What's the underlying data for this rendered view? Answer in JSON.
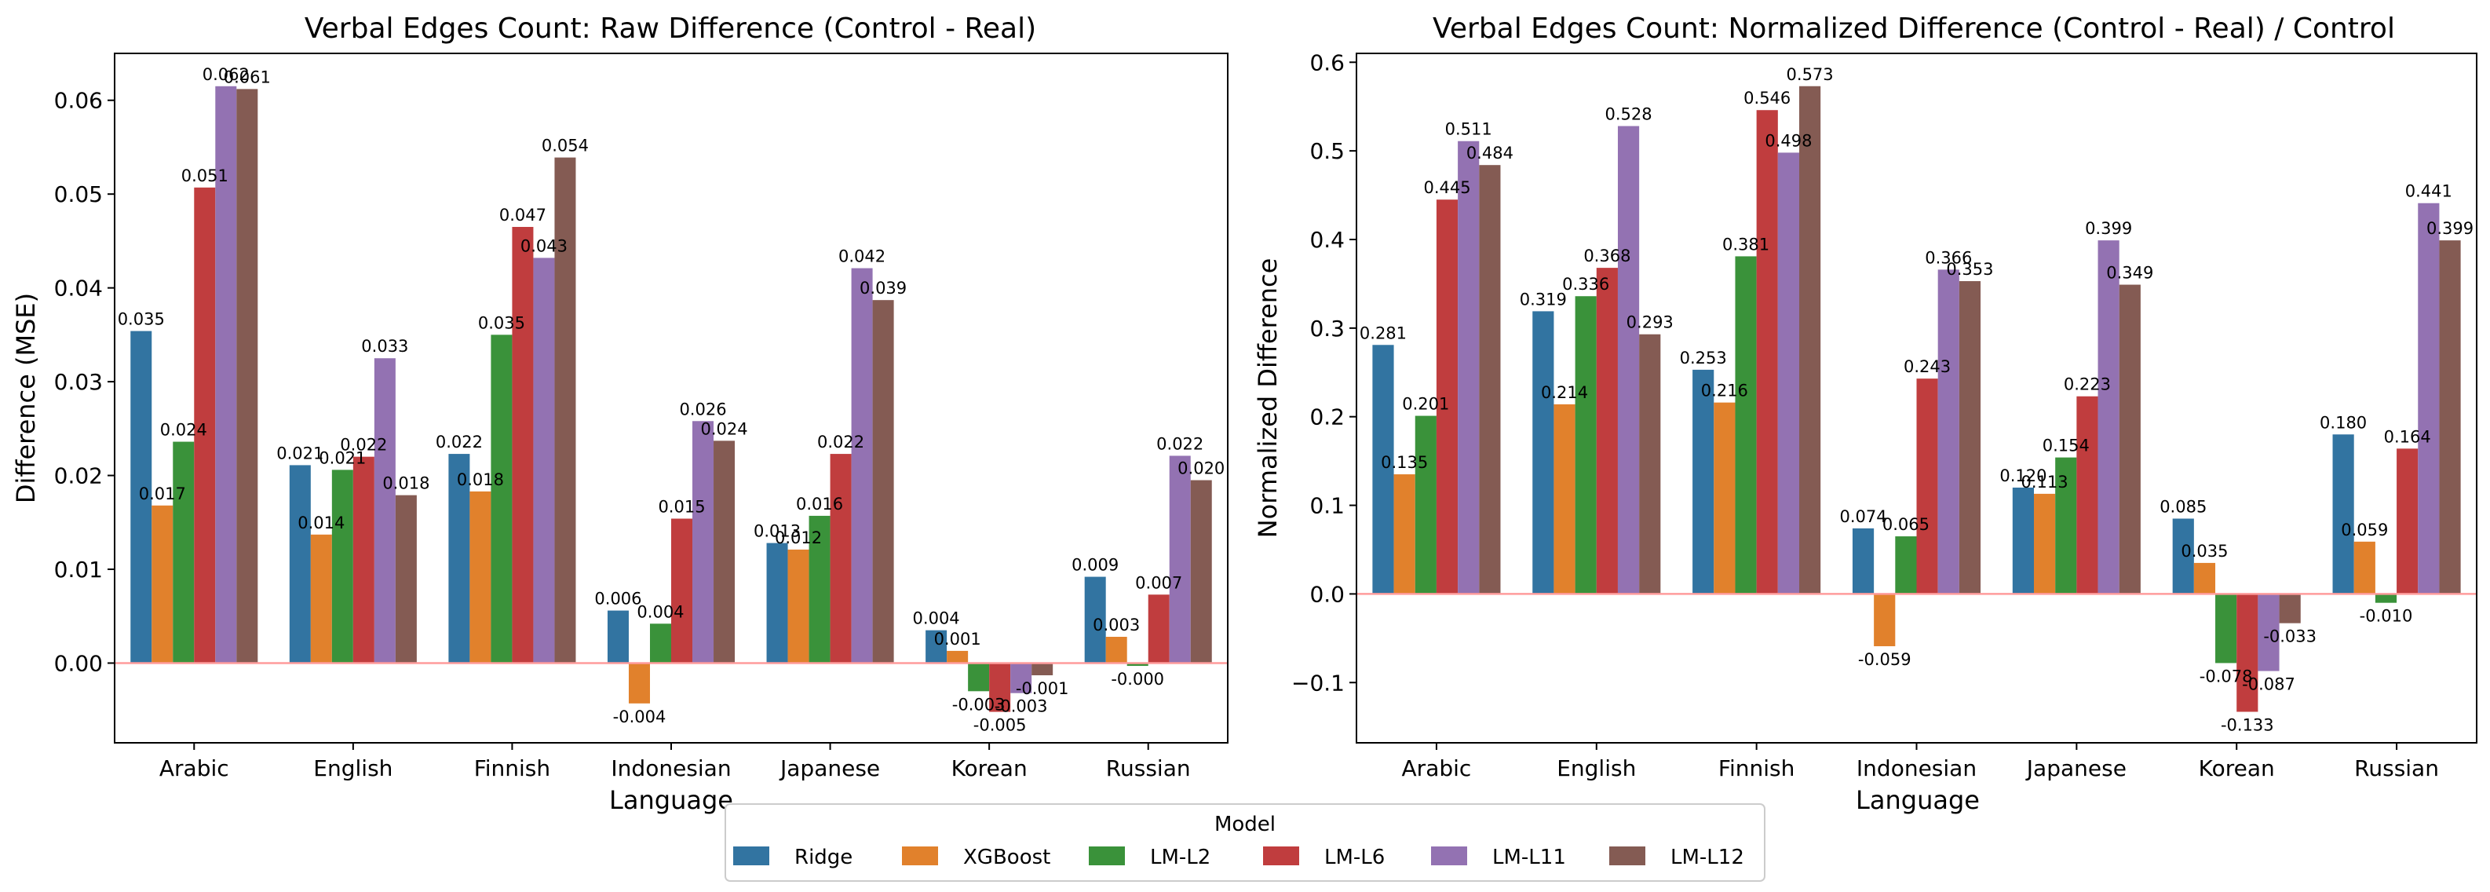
{
  "legend": {
    "title": "Model",
    "items": [
      {
        "name": "Ridge",
        "color": "#3274a1"
      },
      {
        "name": "XGBoost",
        "color": "#e1812c"
      },
      {
        "name": "LM-L2",
        "color": "#3a923a"
      },
      {
        "name": "LM-L6",
        "color": "#c03d3e"
      },
      {
        "name": "LM-L11",
        "color": "#9372b2"
      },
      {
        "name": "LM-L12",
        "color": "#845b53"
      }
    ]
  },
  "zero_line_color": "#ff9c9c",
  "chart_data": [
    {
      "type": "bar",
      "title": "Verbal Edges Count: Raw Difference (Control - Real)",
      "xlabel": "Language",
      "ylabel": "Difference (MSE)",
      "categories": [
        "Arabic",
        "English",
        "Finnish",
        "Indonesian",
        "Japanese",
        "Korean",
        "Russian"
      ],
      "ylim": [
        -0.0085,
        0.065
      ],
      "yticks": [
        0.0,
        0.01,
        0.02,
        0.03,
        0.04,
        0.05,
        0.06
      ],
      "ytick_labels": [
        "0.00",
        "0.01",
        "0.02",
        "0.03",
        "0.04",
        "0.05",
        "0.06"
      ],
      "series": [
        {
          "name": "Ridge",
          "values": [
            0.0354,
            0.0211,
            0.0223,
            0.0056,
            0.0128,
            0.0035,
            0.0092
          ],
          "labels": [
            "0.035",
            "0.021",
            "0.022",
            "0.006",
            "0.013",
            "0.004",
            "0.009"
          ]
        },
        {
          "name": "XGBoost",
          "values": [
            0.0168,
            0.0137,
            0.0183,
            -0.0043,
            0.0121,
            0.0013,
            0.0028
          ],
          "labels": [
            "0.017",
            "0.014",
            "0.018",
            "-0.004",
            "0.012",
            "0.001",
            "0.003"
          ]
        },
        {
          "name": "LM-L2",
          "values": [
            0.0236,
            0.0206,
            0.035,
            0.0042,
            0.0157,
            -0.003,
            -0.0003
          ],
          "labels": [
            "0.024",
            "0.021",
            "0.035",
            "0.004",
            "0.016",
            "-0.003",
            "-0.000"
          ]
        },
        {
          "name": "LM-L6",
          "values": [
            0.0507,
            0.022,
            0.0465,
            0.0154,
            0.0223,
            -0.0052,
            0.0073
          ],
          "labels": [
            "0.051",
            "0.022",
            "0.047",
            "0.015",
            "0.022",
            "-0.005",
            "0.007"
          ]
        },
        {
          "name": "LM-L11",
          "values": [
            0.0615,
            0.0325,
            0.0432,
            0.0258,
            0.0421,
            -0.0032,
            0.0221
          ],
          "labels": [
            "0.062",
            "0.033",
            "0.043",
            "0.026",
            "0.042",
            "-0.003",
            "0.022"
          ]
        },
        {
          "name": "LM-L12",
          "values": [
            0.0612,
            0.0179,
            0.0539,
            0.0237,
            0.0387,
            -0.0013,
            0.0195
          ],
          "labels": [
            "0.061",
            "0.018",
            "0.054",
            "0.024",
            "0.039",
            "-0.001",
            "0.020"
          ]
        }
      ]
    },
    {
      "type": "bar",
      "title": "Verbal Edges Count: Normalized Difference (Control - Real) / Control",
      "xlabel": "Language",
      "ylabel": "Normalized Difference",
      "categories": [
        "Arabic",
        "English",
        "Finnish",
        "Indonesian",
        "Japanese",
        "Korean",
        "Russian"
      ],
      "ylim": [
        -0.168,
        0.61
      ],
      "yticks": [
        -0.1,
        0.0,
        0.1,
        0.2,
        0.3,
        0.4,
        0.5,
        0.6
      ],
      "ytick_labels": [
        "−0.1",
        "0.0",
        "0.1",
        "0.2",
        "0.3",
        "0.4",
        "0.5",
        "0.6"
      ],
      "series": [
        {
          "name": "Ridge",
          "values": [
            0.281,
            0.319,
            0.253,
            0.074,
            0.12,
            0.085,
            0.18
          ],
          "labels": [
            "0.281",
            "0.319",
            "0.253",
            "0.074",
            "0.120",
            "0.085",
            "0.180"
          ]
        },
        {
          "name": "XGBoost",
          "values": [
            0.135,
            0.214,
            0.216,
            -0.059,
            0.113,
            0.035,
            0.059
          ],
          "labels": [
            "0.135",
            "0.214",
            "0.216",
            "-0.059",
            "0.113",
            "0.035",
            "0.059"
          ]
        },
        {
          "name": "LM-L2",
          "values": [
            0.201,
            0.336,
            0.381,
            0.065,
            0.154,
            -0.078,
            -0.01
          ],
          "labels": [
            "0.201",
            "0.336",
            "0.381",
            "0.065",
            "0.154",
            "-0.078",
            "-0.010"
          ]
        },
        {
          "name": "LM-L6",
          "values": [
            0.445,
            0.368,
            0.546,
            0.243,
            0.223,
            -0.133,
            0.164
          ],
          "labels": [
            "0.445",
            "0.368",
            "0.546",
            "0.243",
            "0.223",
            "-0.133",
            "0.164"
          ]
        },
        {
          "name": "LM-L11",
          "values": [
            0.511,
            0.528,
            0.498,
            0.366,
            0.399,
            -0.087,
            0.441
          ],
          "labels": [
            "0.511",
            "0.528",
            "0.498",
            "0.366",
            "0.399",
            "-0.087",
            "0.441"
          ]
        },
        {
          "name": "LM-L12",
          "values": [
            0.484,
            0.293,
            0.573,
            0.353,
            0.349,
            -0.033,
            0.399
          ],
          "labels": [
            "0.484",
            "0.293",
            "0.573",
            "0.353",
            "0.349",
            "-0.033",
            "0.399"
          ]
        }
      ]
    }
  ]
}
